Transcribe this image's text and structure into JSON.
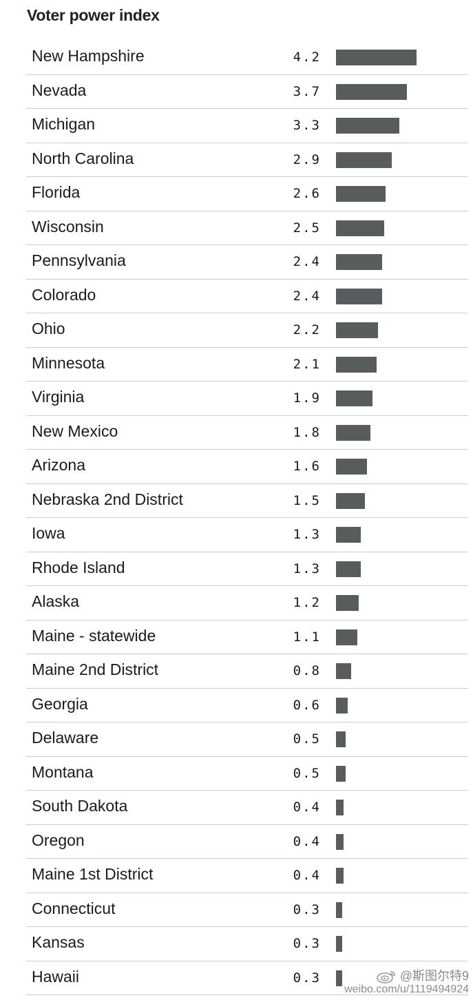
{
  "chart_data": {
    "type": "bar",
    "orientation": "horizontal",
    "title": "Voter power index",
    "bar_color": "#595c5d",
    "divider_color": "#cccccc",
    "grid": false,
    "legend": "none",
    "xlim": [
      0,
      4.2
    ],
    "categories": [
      "New Hampshire",
      "Nevada",
      "Michigan",
      "North Carolina",
      "Florida",
      "Wisconsin",
      "Pennsylvania",
      "Colorado",
      "Ohio",
      "Minnesota",
      "Virginia",
      "New Mexico",
      "Arizona",
      "Nebraska 2nd District",
      "Iowa",
      "Rhode Island",
      "Alaska",
      "Maine - statewide",
      "Maine 2nd District",
      "Georgia",
      "Delaware",
      "Montana",
      "South Dakota",
      "Oregon",
      "Maine 1st District",
      "Connecticut",
      "Kansas",
      "Hawaii"
    ],
    "values": [
      4.2,
      3.7,
      3.3,
      2.9,
      2.6,
      2.5,
      2.4,
      2.4,
      2.2,
      2.1,
      1.9,
      1.8,
      1.6,
      1.5,
      1.3,
      1.3,
      1.2,
      1.1,
      0.8,
      0.6,
      0.5,
      0.5,
      0.4,
      0.4,
      0.4,
      0.3,
      0.3,
      0.3
    ],
    "value_labels": [
      "4.2",
      "3.7",
      "3.3",
      "2.9",
      "2.6",
      "2.5",
      "2.4",
      "2.4",
      "2.2",
      "2.1",
      "1.9",
      "1.8",
      "1.6",
      "1.5",
      "1.3",
      "1.3",
      "1.2",
      "1.1",
      "0.8",
      "0.6",
      "0.5",
      "0.5",
      "0.4",
      "0.4",
      "0.4",
      "0.3",
      "0.3",
      "0.3"
    ]
  },
  "watermark": {
    "handle": "@斯图尔特9",
    "url": "weibo.com/u/1119494924",
    "icon": "weibo-logo-icon"
  }
}
